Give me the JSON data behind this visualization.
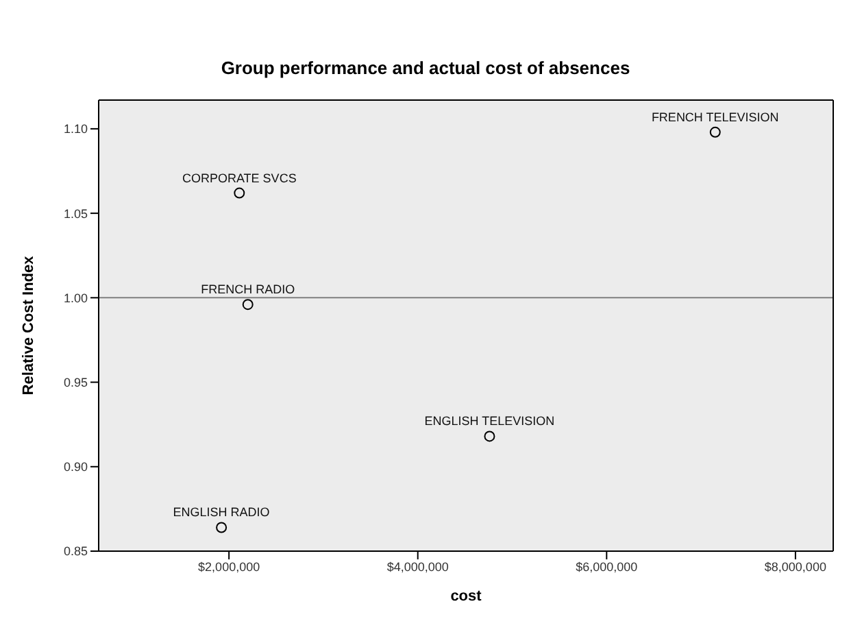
{
  "chart_data": {
    "type": "scatter",
    "title": "Group performance and actual cost of absences",
    "xlabel": "cost",
    "ylabel": "Relative Cost Index",
    "x": [
      2110000,
      2200000,
      1920000,
      4760000,
      7150000
    ],
    "series": [
      {
        "color": "#000000",
        "values": [
          1.062,
          0.996,
          0.864,
          0.918,
          1.098
        ]
      }
    ],
    "xlim": [
      620000,
      8400000
    ],
    "xticks": [
      {
        "value": 2000000,
        "label": "$2,000,000"
      },
      {
        "value": 4000000,
        "label": "$4,000,000"
      },
      {
        "value": 6000000,
        "label": "$6,000,000"
      },
      {
        "value": 8000000,
        "label": "$8,000,000"
      }
    ],
    "ylim": [
      0.85,
      1.117
    ],
    "yticks": [
      {
        "value": 0.85,
        "label": "0.85"
      },
      {
        "value": 0.9,
        "label": "0.90"
      },
      {
        "value": 0.95,
        "label": "0.95"
      },
      {
        "value": 1.0,
        "label": "1.00"
      },
      {
        "value": 1.05,
        "label": "1.05"
      },
      {
        "value": 1.1,
        "label": "1.10"
      }
    ],
    "ref_lines": [
      {
        "axis": "y",
        "value": 1.0,
        "color": "#808080"
      }
    ],
    "annotations": [
      {
        "text": "CORPORATE SVCS",
        "x": 2110000,
        "y": 1.062
      },
      {
        "text": "FRENCH RADIO",
        "x": 2200000,
        "y": 0.996
      },
      {
        "text": "ENGLISH RADIO",
        "x": 1920000,
        "y": 0.864
      },
      {
        "text": "ENGLISH TELEVISION",
        "x": 4760000,
        "y": 0.918
      },
      {
        "text": "FRENCH TELEVISION",
        "x": 7150000,
        "y": 1.098
      }
    ],
    "marker": "circle",
    "grid": false
  }
}
